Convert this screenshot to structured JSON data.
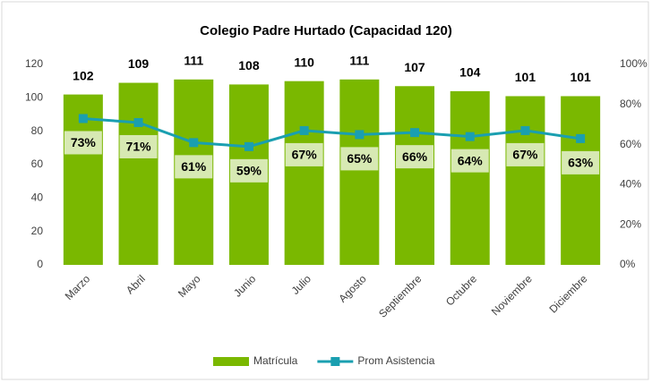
{
  "chart_data": {
    "type": "bar",
    "title": "Colegio Padre Hurtado (Capacidad 120)",
    "categories": [
      "Marzo",
      "Abril",
      "Mayo",
      "Junio",
      "Julio",
      "Agosto",
      "Septiembre",
      "Octubre",
      "Noviembre",
      "Diciembre"
    ],
    "series": [
      {
        "name": "Matrícula",
        "type": "bar",
        "color": "#7ab800",
        "values": [
          102,
          109,
          111,
          108,
          110,
          111,
          107,
          104,
          101,
          101
        ]
      },
      {
        "name": "Prom Asistencia",
        "type": "line",
        "axis": "y2",
        "color": "#1a9fb0",
        "values": [
          73,
          71,
          61,
          59,
          67,
          65,
          66,
          64,
          67,
          63
        ],
        "value_labels": [
          "73%",
          "71%",
          "61%",
          "59%",
          "67%",
          "65%",
          "66%",
          "64%",
          "67%",
          "63%"
        ]
      }
    ],
    "ylim": [
      0,
      120
    ],
    "yticks": [
      0,
      20,
      40,
      60,
      80,
      100,
      120
    ],
    "y2lim": [
      0,
      100
    ],
    "y2ticks": [
      {
        "value": 0,
        "label": "0%"
      },
      {
        "value": 20,
        "label": "20%"
      },
      {
        "value": 40,
        "label": "40%"
      },
      {
        "value": 60,
        "label": "60%"
      },
      {
        "value": 80,
        "label": "80%"
      },
      {
        "value": 100,
        "label": "100%"
      }
    ],
    "legend": "bottom"
  }
}
